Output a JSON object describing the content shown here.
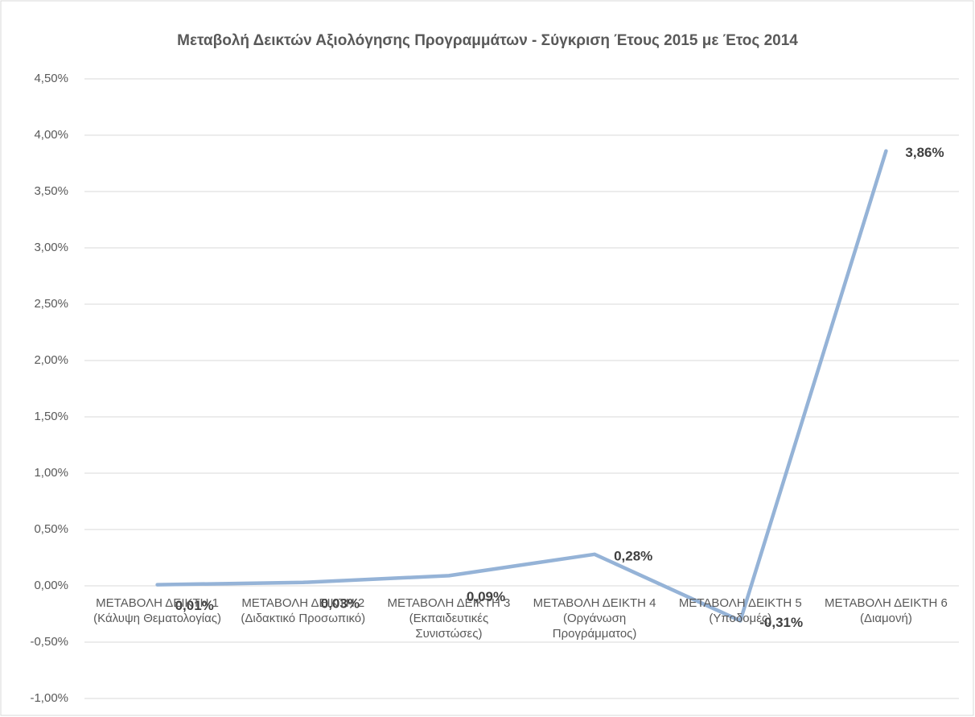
{
  "chart_data": {
    "type": "line",
    "title": "Μεταβολή Δεικτών Αξιολόγησης Προγραμμάτων - Σύγκριση Έτους 2015 με Έτος 2014",
    "categories": [
      "ΜΕΤΑΒΟΛΗ ΔΕΙΚΤΗ 1 (Κάλυψη Θεματολογίας)",
      "ΜΕΤΑΒΟΛΗ ΔΕΙΚΤΗ 2 (Διδακτικό Προσωπικό)",
      "ΜΕΤΑΒΟΛΗ ΔΕΙΚΤΗ 3 (Εκπαιδευτικές Συνιστώσες)",
      "ΜΕΤΑΒΟΛΗ ΔΕΙΚΤΗ 4 (Οργάνωση Προγράμματος)",
      "ΜΕΤΑΒΟΛΗ ΔΕΙΚΤΗ 5 (Υποδομές)",
      "ΜΕΤΑΒΟΛΗ ΔΕΙΚΤΗ 6 (Διαμονή)"
    ],
    "values": [
      0.01,
      0.03,
      0.09,
      0.28,
      -0.31,
      3.86
    ],
    "value_labels": [
      "0,01%",
      "0,03%",
      "0,09%",
      "0,28%",
      "-0,31%",
      "3,86%"
    ],
    "color": "#95b3d7",
    "ylim": [
      -1,
      4.5
    ],
    "yticks": [
      {
        "value": -1,
        "label": "-1,00%"
      },
      {
        "value": -0.5,
        "label": "-0,50%"
      },
      {
        "value": 0,
        "label": "0,00%"
      },
      {
        "value": 0.5,
        "label": "0,50%"
      },
      {
        "value": 1,
        "label": "1,00%"
      },
      {
        "value": 1.5,
        "label": "1,50%"
      },
      {
        "value": 2,
        "label": "2,00%"
      },
      {
        "value": 2.5,
        "label": "2,50%"
      },
      {
        "value": 3,
        "label": "3,00%"
      },
      {
        "value": 3.5,
        "label": "3,50%"
      },
      {
        "value": 4,
        "label": "4,00%"
      },
      {
        "value": 4.5,
        "label": "4,50%"
      }
    ],
    "grid": true
  }
}
